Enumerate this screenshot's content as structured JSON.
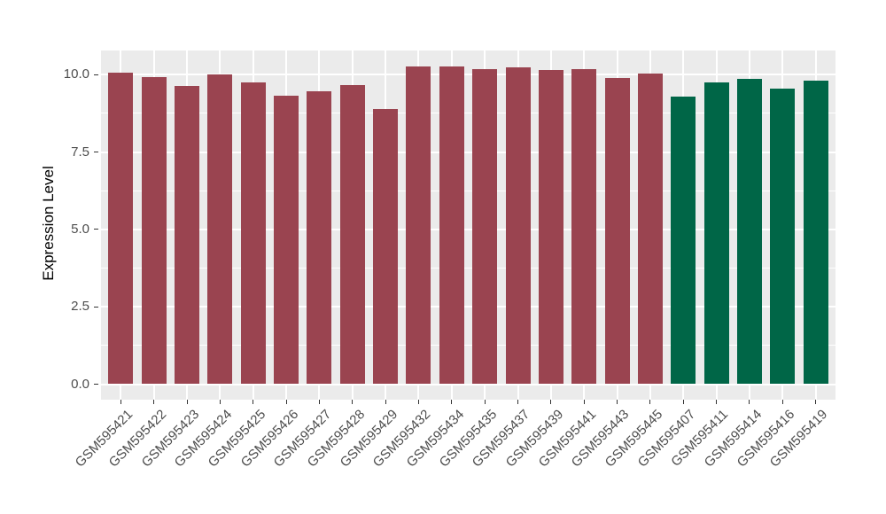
{
  "chart_data": {
    "type": "bar",
    "title": "",
    "xlabel": "",
    "ylabel": "Expression Level",
    "ylim": [
      0,
      10.75
    ],
    "yticks": [
      0,
      2.5,
      5,
      7.5,
      10
    ],
    "ytick_labels": [
      "0.0",
      "2.5",
      "5.0",
      "7.5",
      "10.0"
    ],
    "minor_gridlines": [
      1.25,
      3.75,
      6.25,
      8.75
    ],
    "grid": "on",
    "legend_position": "none",
    "categories": [
      "GSM595421",
      "GSM595422",
      "GSM595423",
      "GSM595424",
      "GSM595425",
      "GSM595426",
      "GSM595427",
      "GSM595428",
      "GSM595429",
      "GSM595432",
      "GSM595434",
      "GSM595435",
      "GSM595437",
      "GSM595439",
      "GSM595441",
      "GSM595443",
      "GSM595445",
      "GSM595407",
      "GSM595411",
      "GSM595414",
      "GSM595416",
      "GSM595419"
    ],
    "values": [
      10.05,
      9.93,
      9.64,
      10.0,
      9.75,
      9.31,
      9.45,
      9.66,
      8.9,
      10.27,
      10.27,
      10.19,
      10.23,
      10.15,
      10.17,
      9.9,
      10.04,
      9.29,
      9.74,
      9.86,
      9.55,
      9.81
    ],
    "groups": [
      "red",
      "red",
      "red",
      "red",
      "red",
      "red",
      "red",
      "red",
      "red",
      "red",
      "red",
      "red",
      "red",
      "red",
      "red",
      "red",
      "red",
      "green",
      "green",
      "green",
      "green",
      "green"
    ]
  },
  "style": {
    "group_colors": {
      "red": "#9A4450",
      "green": "#006647"
    },
    "panel_bg": "#EBEBEB",
    "grid_color": "#FFFFFF",
    "axis_text_color": "#4D4D4D",
    "tick_color": "#333333",
    "background": "#FFFFFF"
  }
}
